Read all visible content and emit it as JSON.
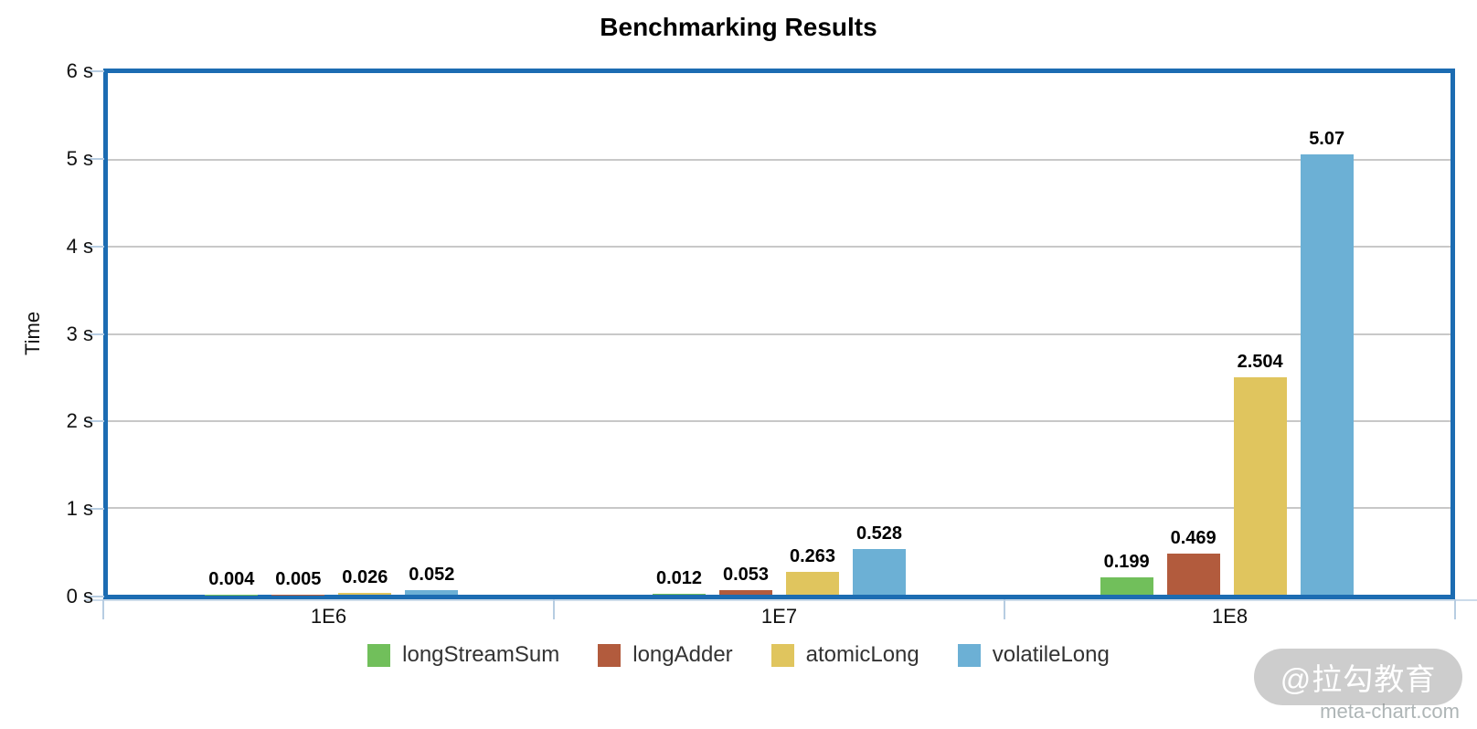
{
  "chart_data": {
    "type": "bar",
    "title": "Benchmarking Results",
    "categories": [
      "1E6",
      "1E7",
      "1E8"
    ],
    "series": [
      {
        "name": "longStreamSum",
        "color": "#71bf5b",
        "values": [
          0.004,
          0.012,
          0.199
        ]
      },
      {
        "name": "longAdder",
        "color": "#b25b3d",
        "values": [
          0.005,
          0.053,
          0.469
        ]
      },
      {
        "name": "atomicLong",
        "color": "#e0c55e",
        "values": [
          0.026,
          0.263,
          2.504
        ]
      },
      {
        "name": "volatileLong",
        "color": "#6cb0d5",
        "values": [
          0.052,
          0.528,
          5.07
        ]
      }
    ],
    "value_labels": [
      "0.004",
      "0.005",
      "0.026",
      "0.052",
      "0.012",
      "0.053",
      "0.263",
      "0.528",
      "0.199",
      "0.469",
      "2.504",
      "5.07"
    ],
    "xlabel": "",
    "ylabel": "Time",
    "ylim": [
      0,
      6
    ],
    "y_ticks": [
      "0 s",
      "1 s",
      "2 s",
      "3 s",
      "4 s",
      "5 s",
      "6 s"
    ],
    "grid": true,
    "legend_position": "bottom"
  },
  "colors": {
    "plot_border": "#1c6cb2",
    "grid_line": "#c8c8c8",
    "axis_tick": "#b7cde2",
    "value_label": "#000000",
    "legend_text": "#333333"
  },
  "watermark": {
    "badge": "@拉勾教育",
    "site": "meta-chart.com"
  }
}
